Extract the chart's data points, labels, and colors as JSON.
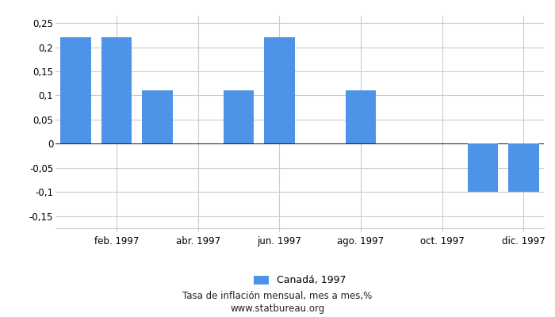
{
  "months": [
    1,
    2,
    3,
    4,
    5,
    6,
    7,
    8,
    9,
    10,
    11,
    12
  ],
  "values": [
    0.22,
    0.22,
    0.11,
    0.0,
    0.11,
    0.22,
    0.0,
    0.11,
    0.0,
    0.0,
    -0.1,
    -0.1
  ],
  "bar_color": "#4d94e8",
  "xtick_positions": [
    2,
    4,
    6,
    8,
    10,
    12
  ],
  "xtick_labels": [
    "feb. 1997",
    "abr. 1997",
    "jun. 1997",
    "ago. 1997",
    "oct. 1997",
    "dic. 1997"
  ],
  "ylim": [
    -0.175,
    0.265
  ],
  "yticks": [
    -0.15,
    -0.1,
    -0.05,
    0.0,
    0.05,
    0.1,
    0.15,
    0.2,
    0.25
  ],
  "ytick_labels": [
    "-0,15",
    "-0,1",
    "-0,05",
    "0",
    "0,05",
    "0,1",
    "0,15",
    "0,2",
    "0,25"
  ],
  "legend_label": "Canadá, 1997",
  "footer_line1": "Tasa de inflación mensual, mes a mes,%",
  "footer_line2": "www.statbureau.org",
  "background_color": "#ffffff",
  "grid_color": "#cccccc",
  "bar_width": 0.75
}
